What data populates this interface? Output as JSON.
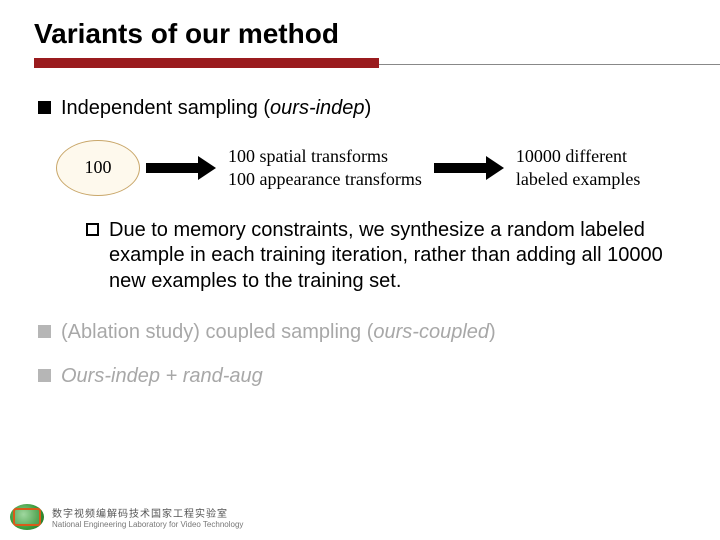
{
  "title": "Variants of our method",
  "colors": {
    "accent_bar": "#9a1b1e",
    "rule": "#888888",
    "oval_fill": "#fef9ed",
    "oval_border": "#c9a76a",
    "dim_text": "#a8a8a8",
    "dim_bullet": "#b6b6b6",
    "background": "#ffffff"
  },
  "bullets": {
    "b1_plain": "Independent sampling (",
    "b1_em": "ours-indep",
    "b1_tail": ")",
    "b2_plain": "(Ablation study) coupled sampling (",
    "b2_em": "ours-coupled",
    "b2_tail": ")",
    "b3": "Ours-indep + rand-aug"
  },
  "diagram": {
    "oval": "100",
    "mid_line1": "100 spatial transforms",
    "mid_line2": "100 appearance transforms",
    "right_line1": "10000 different",
    "right_line2": "labeled examples"
  },
  "sub": {
    "text": "Due to memory constraints, we synthesize a random labeled example in each training iteration, rather than adding all 10000 new examples to the training set."
  },
  "footer": {
    "cn": "数字视频编解码技术国家工程实验室",
    "en": "National Engineering Laboratory for Video Technology"
  }
}
